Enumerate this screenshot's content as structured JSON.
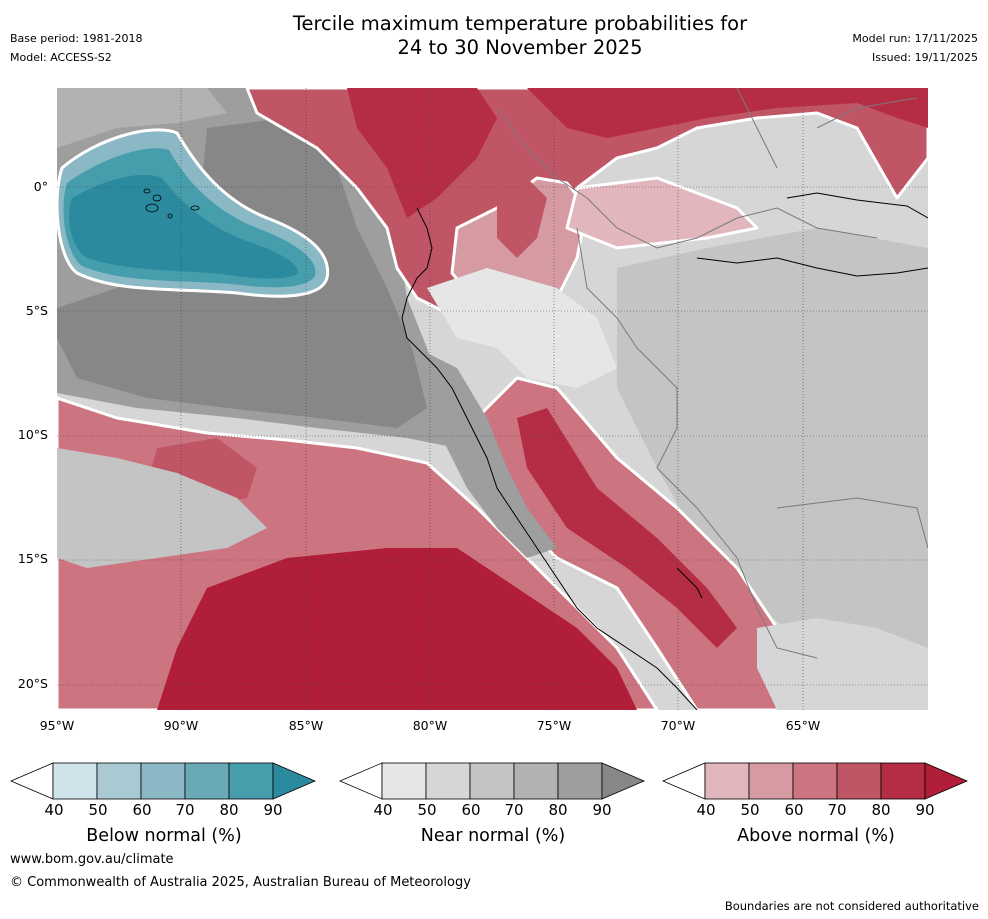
{
  "header": {
    "title_line1": "Tercile maximum temperature probabilities for",
    "title_line2": "24 to 30 November 2025",
    "base_period": "Base period: 1981-2018",
    "model": "Model: ACCESS-S2",
    "model_run": "Model run: 17/11/2025",
    "issued": "Issued: 19/11/2025"
  },
  "map": {
    "lat_labels": [
      "0°",
      "5°S",
      "10°S",
      "15°S",
      "20°S"
    ],
    "lon_labels": [
      "95°W",
      "90°W",
      "85°W",
      "80°W",
      "75°W",
      "70°W",
      "65°W"
    ],
    "colors": {
      "below": [
        "#cfe4ea",
        "#a9cad2",
        "#8ab8c4",
        "#6aaab7",
        "#469ead",
        "#2b8a9e"
      ],
      "near": [
        "#e6e6e6",
        "#d6d6d6",
        "#c4c4c4",
        "#b2b2b2",
        "#9e9e9e",
        "#878787"
      ],
      "above": [
        "#e2b6bd",
        "#d69aa2",
        "#cc7580",
        "#c05665",
        "#b52d45",
        "#b01e3a"
      ],
      "land_border": "#7a7a7a",
      "coast": "#000000",
      "contour": "#ffffff"
    }
  },
  "legends": [
    {
      "name": "Below normal (%)",
      "ticks": [
        "40",
        "50",
        "60",
        "70",
        "80",
        "90"
      ]
    },
    {
      "name": "Near normal (%)",
      "ticks": [
        "40",
        "50",
        "60",
        "70",
        "80",
        "90"
      ]
    },
    {
      "name": "Above normal (%)",
      "ticks": [
        "40",
        "50",
        "60",
        "70",
        "80",
        "90"
      ]
    }
  ],
  "footer": {
    "website": "www.bom.gov.au/climate",
    "copyright": "© Commonwealth of Australia 2025, Australian Bureau of Meteorology",
    "disclaimer": "Boundaries are not considered authoritative"
  }
}
